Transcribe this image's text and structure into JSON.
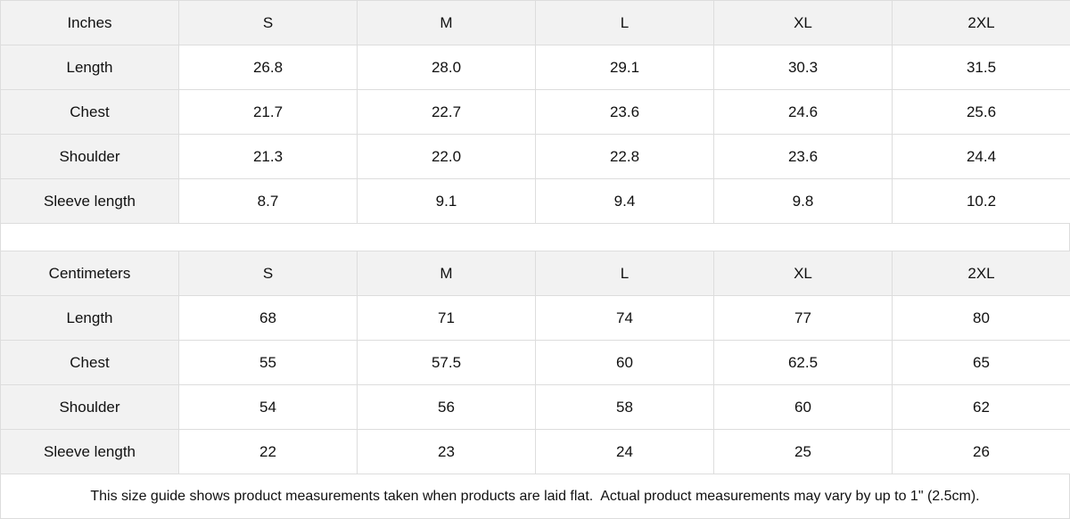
{
  "tables": [
    {
      "unit": "Inches",
      "sizes": [
        "S",
        "M",
        "L",
        "XL",
        "2XL"
      ],
      "rows": [
        {
          "label": "Length",
          "values": [
            "26.8",
            "28.0",
            "29.1",
            "30.3",
            "31.5"
          ]
        },
        {
          "label": "Chest",
          "values": [
            "21.7",
            "22.7",
            "23.6",
            "24.6",
            "25.6"
          ]
        },
        {
          "label": "Shoulder",
          "values": [
            "21.3",
            "22.0",
            "22.8",
            "23.6",
            "24.4"
          ]
        },
        {
          "label": "Sleeve length",
          "values": [
            "8.7",
            "9.1",
            "9.4",
            "9.8",
            "10.2"
          ]
        }
      ]
    },
    {
      "unit": "Centimeters",
      "sizes": [
        "S",
        "M",
        "L",
        "XL",
        "2XL"
      ],
      "rows": [
        {
          "label": "Length",
          "values": [
            "68",
            "71",
            "74",
            "77",
            "80"
          ]
        },
        {
          "label": "Chest",
          "values": [
            "55",
            "57.5",
            "60",
            "62.5",
            "65"
          ]
        },
        {
          "label": "Shoulder",
          "values": [
            "54",
            "56",
            "58",
            "60",
            "62"
          ]
        },
        {
          "label": "Sleeve length",
          "values": [
            "22",
            "23",
            "24",
            "25",
            "26"
          ]
        }
      ]
    }
  ],
  "note": "This size guide shows product measurements taken when products are laid flat.  Actual product measurements may vary by up to 1\" (2.5cm).",
  "colors": {
    "header_bg": "#f2f2f2",
    "border": "#dddddd"
  }
}
